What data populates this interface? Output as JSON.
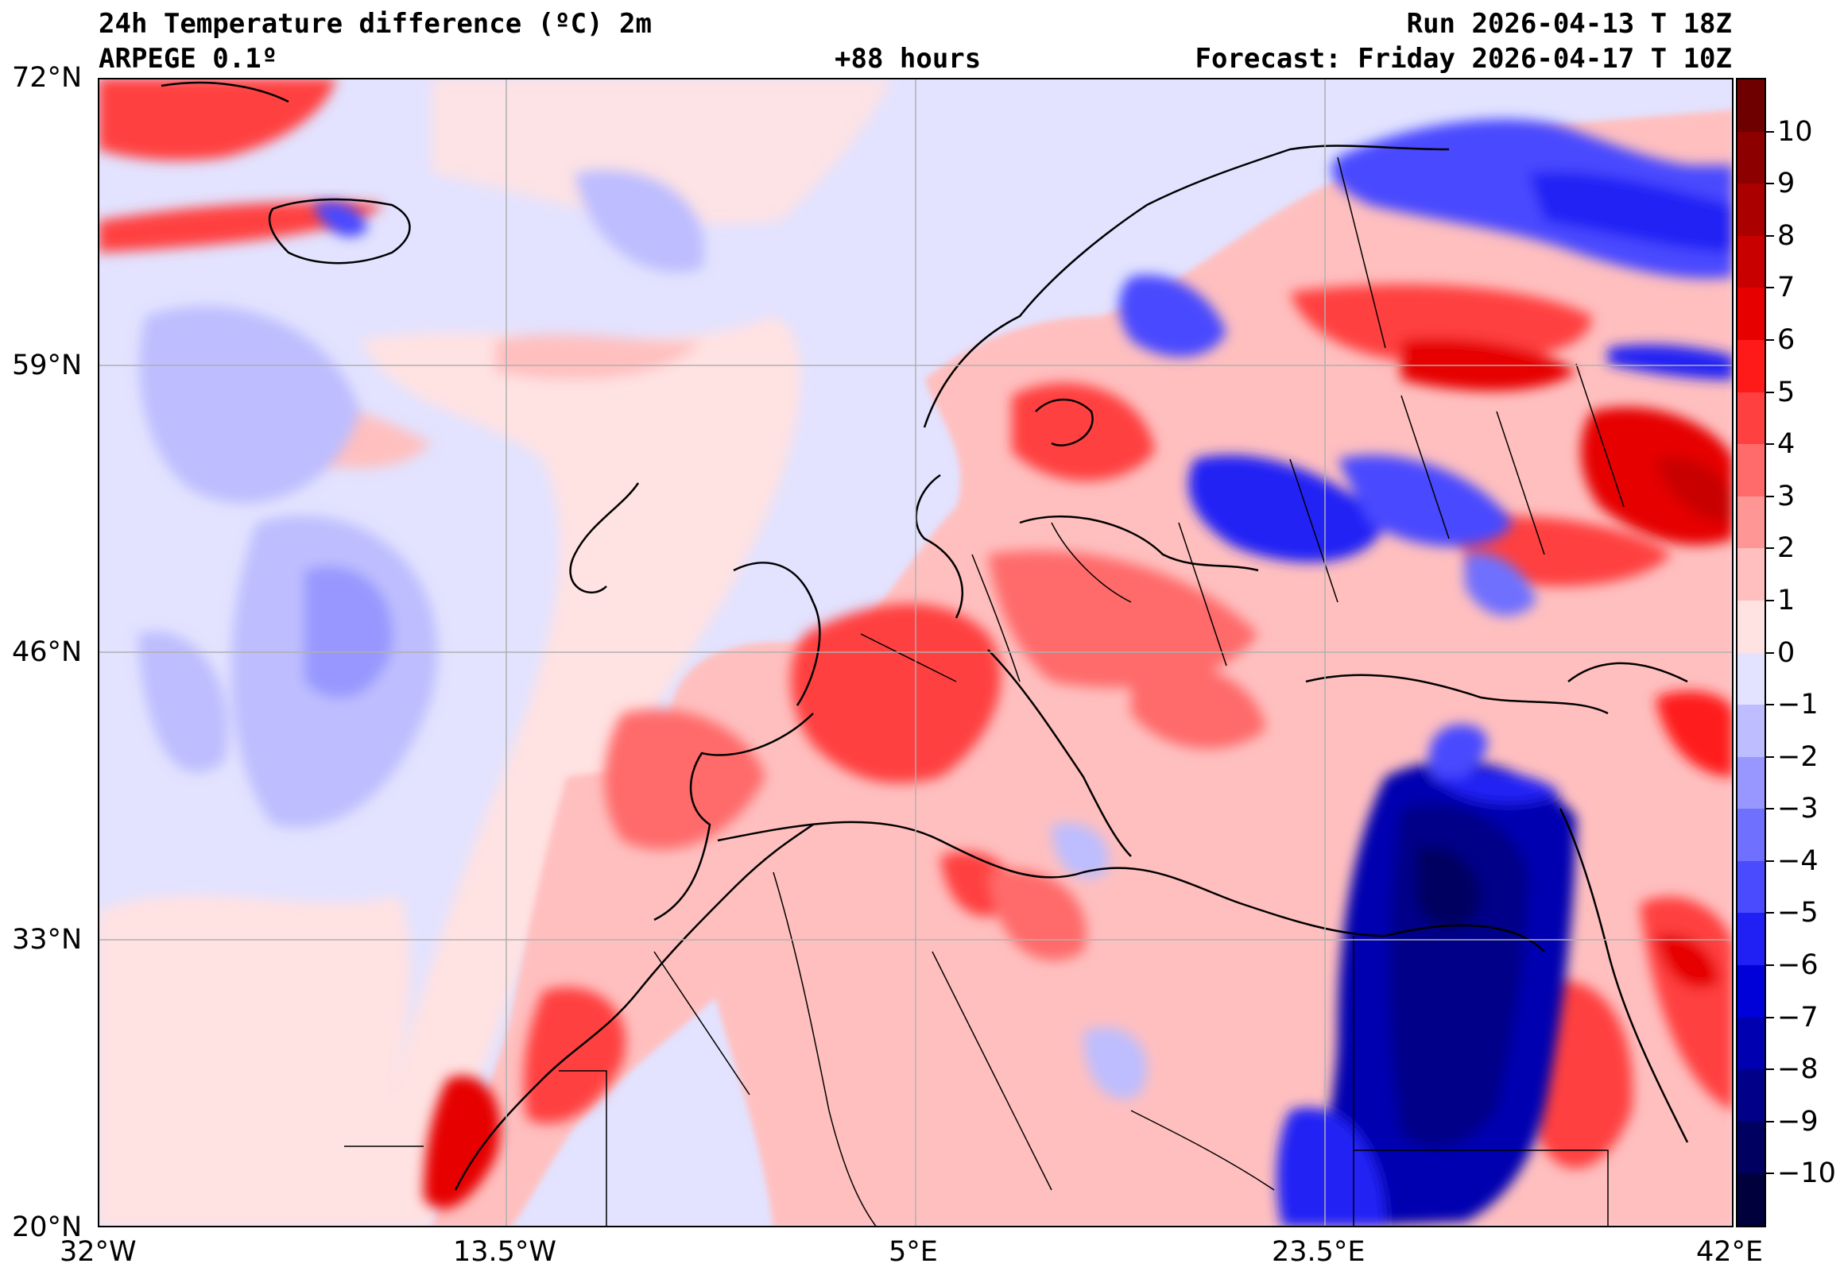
{
  "header": {
    "title": "24h Temperature difference (ºC) 2m",
    "model": "ARPEGE 0.1º",
    "lead_time": "+88 hours",
    "run": "Run 2026-04-13 T 18Z",
    "forecast": "Forecast: Friday 2026-04-17 T 10Z"
  },
  "map": {
    "lat_range": [
      20,
      72
    ],
    "lon_range": [
      -32,
      42
    ],
    "lat_ticks": [
      "72°N",
      "59°N",
      "46°N",
      "33°N",
      "20°N"
    ],
    "lon_ticks": [
      "32°W",
      "13.5°W",
      "5°E",
      "23.5°E",
      "42°E"
    ],
    "gridlines": true
  },
  "colorbar": {
    "labels": [
      "10",
      "9",
      "8",
      "7",
      "6",
      "5",
      "4",
      "3",
      "2",
      "1",
      "0",
      "−1",
      "−2",
      "−3",
      "−4",
      "−5",
      "−6",
      "−7",
      "−8",
      "−9",
      "−10"
    ],
    "colors": [
      "#6e0000",
      "#8c0000",
      "#aa0000",
      "#c80000",
      "#e60000",
      "#ff1a1a",
      "#ff4040",
      "#ff6b6b",
      "#ff9696",
      "#ffbfbf",
      "#ffe2e2",
      "#e3e3ff",
      "#bdbdff",
      "#9797ff",
      "#7070ff",
      "#4a4aff",
      "#2020f5",
      "#0000d8",
      "#0000b0",
      "#000088",
      "#000060",
      "#00003d"
    ]
  }
}
